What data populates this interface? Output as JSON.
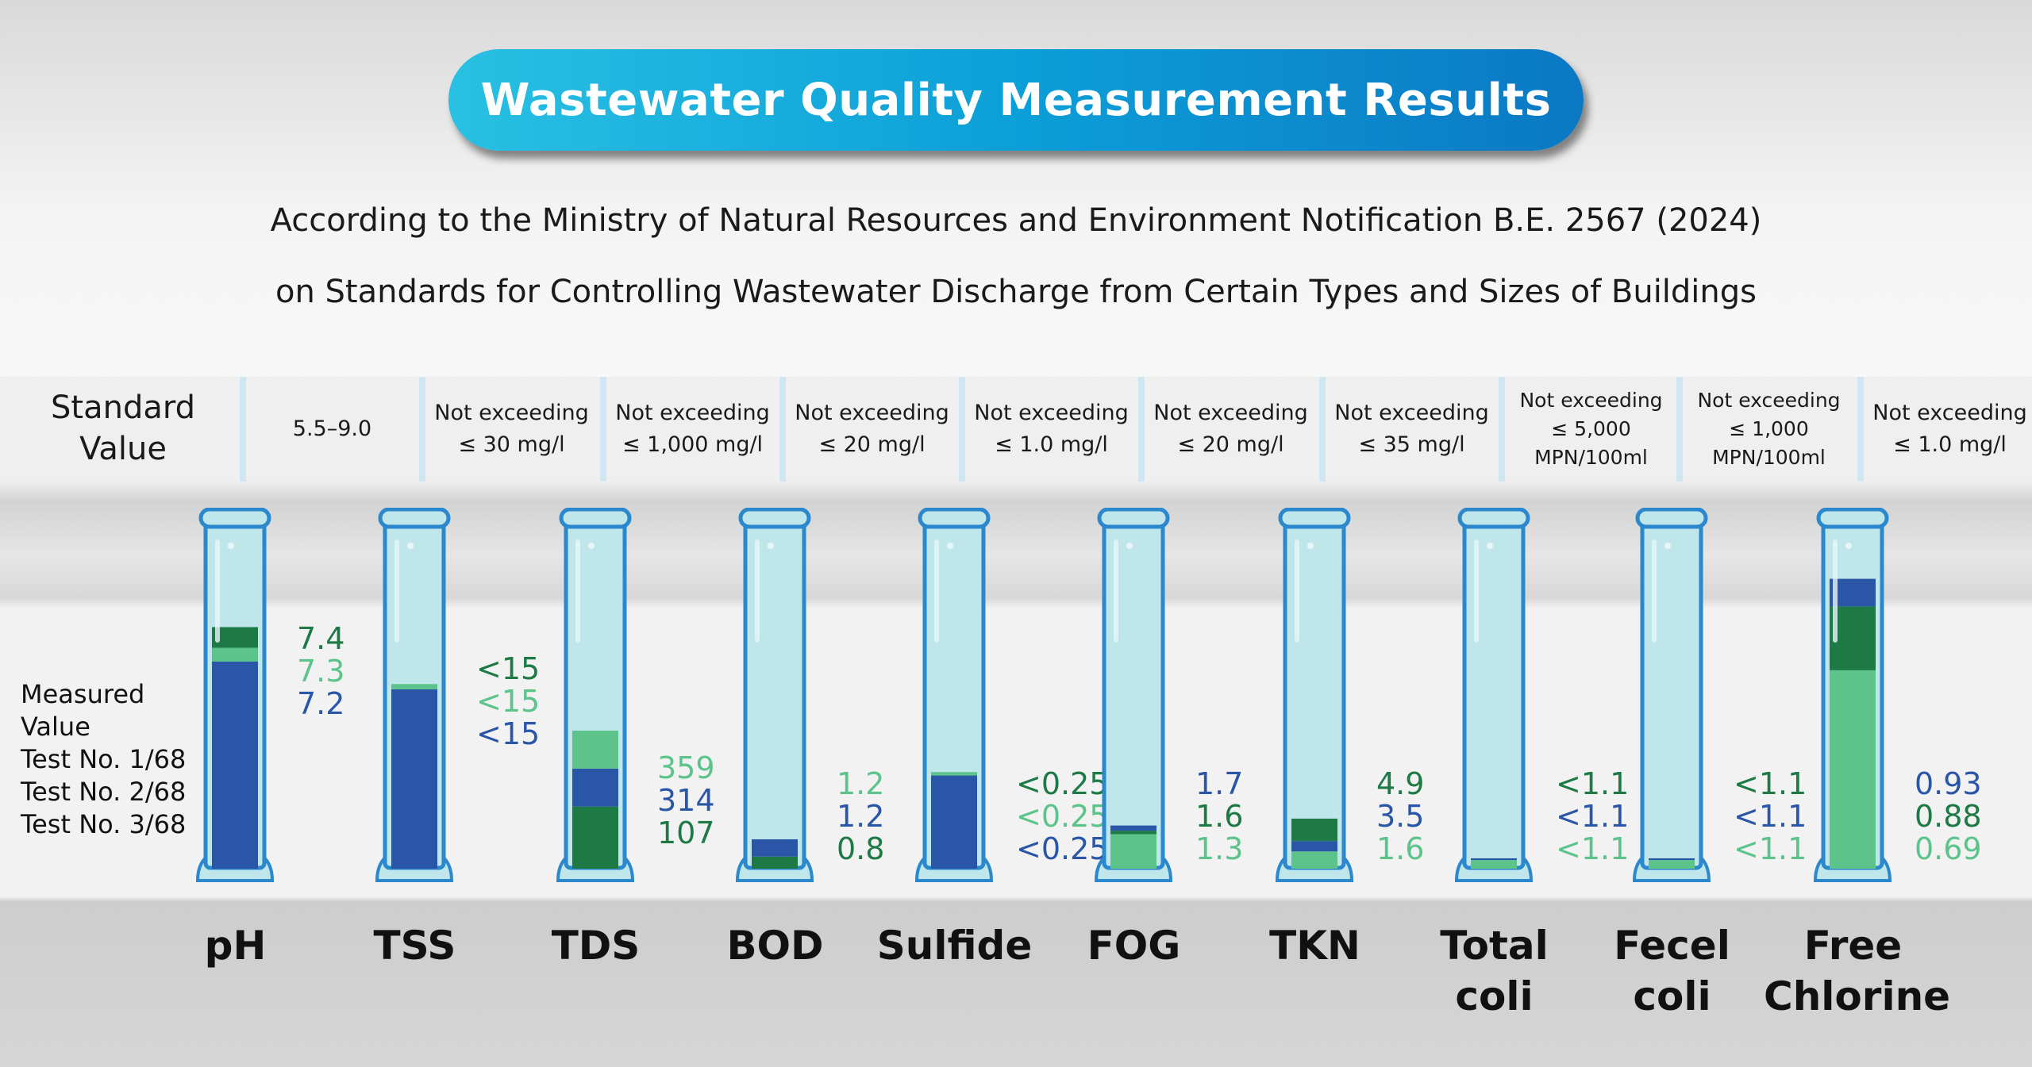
{
  "title": "Wastewater Quality Measurement Results",
  "subtitle": [
    "According to the Ministry of Natural Resources and Environment Notification B.E. 2567 (2024)",
    "on Standards for Controlling Wastewater Discharge from Certain Types and Sizes of Buildings"
  ],
  "standard_label": [
    "Standard",
    "Value"
  ],
  "measured_label": [
    "Measured",
    "Value",
    "Test No. 1/68",
    "Test No. 2/68",
    "Test No. 3/68"
  ],
  "colors": {
    "dark_green": "#1e7a45",
    "light_green": "#5cc48a",
    "blue": "#2a56a8",
    "tube": "#bfe6ea",
    "tube_border": "#2b88cc"
  },
  "parameters": [
    {
      "name": [
        "pH"
      ],
      "standard": [
        "5.5–9.0"
      ],
      "values": [
        {
          "text": "7.4",
          "color": "dark_green"
        },
        {
          "text": "7.3",
          "color": "light_green"
        },
        {
          "text": "7.2",
          "color": "blue"
        }
      ],
      "fill": [
        {
          "level": 60,
          "color": "blue"
        },
        {
          "level": 64,
          "color": "light_green"
        },
        {
          "level": 70,
          "color": "dark_green"
        }
      ]
    },
    {
      "name": [
        "TSS"
      ],
      "standard": [
        "Not exceeding",
        "≤ 30 mg/l"
      ],
      "values": [
        {
          "text": "<15",
          "color": "dark_green"
        },
        {
          "text": "<15",
          "color": "light_green"
        },
        {
          "text": "<15",
          "color": "blue"
        }
      ],
      "fill": [
        {
          "level": 52,
          "color": "blue"
        },
        {
          "level": 53.5,
          "color": "light_green"
        }
      ]
    },
    {
      "name": [
        "TDS"
      ],
      "standard": [
        "Not exceeding",
        "≤ 1,000 mg/l"
      ],
      "values": [
        {
          "text": "359",
          "color": "light_green"
        },
        {
          "text": "314",
          "color": "blue"
        },
        {
          "text": "107",
          "color": "dark_green"
        }
      ],
      "fill": [
        {
          "level": 18,
          "color": "dark_green"
        },
        {
          "level": 29,
          "color": "blue"
        },
        {
          "level": 40,
          "color": "light_green"
        }
      ]
    },
    {
      "name": [
        "BOD"
      ],
      "standard": [
        "Not exceeding",
        "≤ 20 mg/l"
      ],
      "values": [
        {
          "text": "1.2",
          "color": "light_green"
        },
        {
          "text": "1.2",
          "color": "blue"
        },
        {
          "text": "0.8",
          "color": "dark_green"
        }
      ],
      "fill": [
        {
          "level": 3.5,
          "color": "dark_green"
        },
        {
          "level": 8.5,
          "color": "blue"
        }
      ]
    },
    {
      "name": [
        "Sulfide"
      ],
      "standard": [
        "Not exceeding",
        "≤ 1.0 mg/l"
      ],
      "values": [
        {
          "text": "<0.25",
          "color": "dark_green"
        },
        {
          "text": "<0.25",
          "color": "light_green"
        },
        {
          "text": "<0.25",
          "color": "blue"
        }
      ],
      "fill": [
        {
          "level": 27,
          "color": "blue"
        },
        {
          "level": 28,
          "color": "light_green"
        }
      ]
    },
    {
      "name": [
        "FOG"
      ],
      "standard": [
        "Not exceeding",
        "≤ 20 mg/l"
      ],
      "values": [
        {
          "text": "1.7",
          "color": "blue"
        },
        {
          "text": "1.6",
          "color": "dark_green"
        },
        {
          "text": "1.3",
          "color": "light_green"
        }
      ],
      "fill": [
        {
          "level": 10,
          "color": "light_green"
        },
        {
          "level": 11,
          "color": "dark_green"
        },
        {
          "level": 12.5,
          "color": "blue"
        }
      ]
    },
    {
      "name": [
        "TKN"
      ],
      "standard": [
        "Not exceeding",
        "≤ 35 mg/l"
      ],
      "values": [
        {
          "text": "4.9",
          "color": "dark_green"
        },
        {
          "text": "3.5",
          "color": "blue"
        },
        {
          "text": "1.6",
          "color": "light_green"
        }
      ],
      "fill": [
        {
          "level": 5,
          "color": "light_green"
        },
        {
          "level": 8,
          "color": "blue"
        },
        {
          "level": 14.5,
          "color": "dark_green"
        }
      ]
    },
    {
      "name": [
        "Total",
        "coli"
      ],
      "standard": [
        "Not exceeding",
        "≤ 5,000",
        "MPN/100ml"
      ],
      "values": [
        {
          "text": "<1.1",
          "color": "dark_green"
        },
        {
          "text": "<1.1",
          "color": "blue"
        },
        {
          "text": "<1.1",
          "color": "light_green"
        }
      ],
      "fill": [
        {
          "level": 2.5,
          "color": "light_green"
        },
        {
          "level": 3,
          "color": "blue"
        }
      ]
    },
    {
      "name": [
        "Fecel",
        "coli"
      ],
      "standard": [
        "Not exceeding",
        "≤ 1,000",
        "MPN/100ml"
      ],
      "values": [
        {
          "text": "<1.1",
          "color": "dark_green"
        },
        {
          "text": "<1.1",
          "color": "blue"
        },
        {
          "text": "<1.1",
          "color": "light_green"
        }
      ],
      "fill": [
        {
          "level": 2.5,
          "color": "light_green"
        },
        {
          "level": 3,
          "color": "blue"
        }
      ]
    },
    {
      "name": [
        "Free",
        "Chlorine"
      ],
      "standard": [
        "Not exceeding",
        "≤ 1.0 mg/l"
      ],
      "values": [
        {
          "text": "0.93",
          "color": "blue"
        },
        {
          "text": "0.88",
          "color": "dark_green"
        },
        {
          "text": "0.69",
          "color": "light_green"
        }
      ],
      "fill": [
        {
          "level": 57.5,
          "color": "light_green"
        },
        {
          "level": 76,
          "color": "dark_green"
        },
        {
          "level": 84,
          "color": "blue"
        }
      ]
    }
  ]
}
